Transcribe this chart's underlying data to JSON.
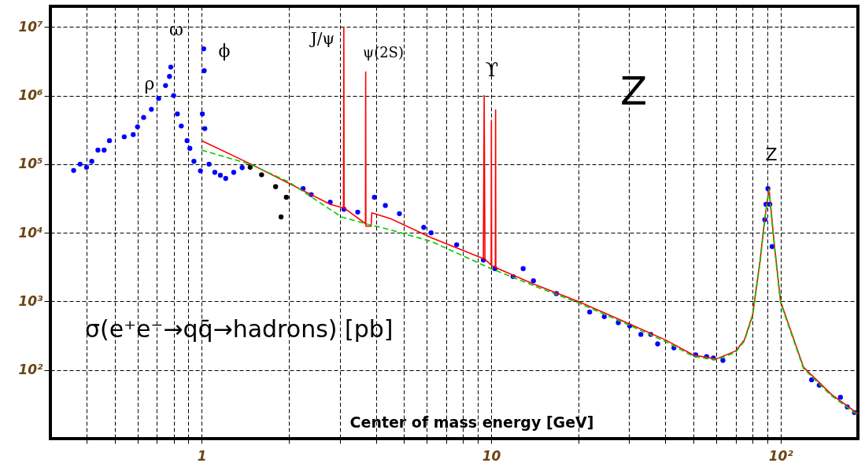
{
  "chart_data": {
    "type": "scatter",
    "xlabel": "Center of mass energy [GeV]",
    "xlim": [
      0.3,
      185
    ],
    "ylim": [
      10,
      20000000
    ],
    "log": "xy",
    "grid": true,
    "xticks": [
      {
        "value": 0.4,
        "label": null
      },
      {
        "value": 0.5,
        "label": null
      },
      {
        "value": 0.6,
        "label": null
      },
      {
        "value": 0.7,
        "label": null
      },
      {
        "value": 0.8,
        "label": null
      },
      {
        "value": 0.9,
        "label": null
      },
      1,
      {
        "value": 2,
        "label": null
      },
      {
        "value": 3,
        "label": null
      },
      {
        "value": 4,
        "label": null
      },
      {
        "value": 5,
        "label": null
      },
      {
        "value": 6,
        "label": null
      },
      {
        "value": 7,
        "label": null
      },
      {
        "value": 8,
        "label": null
      },
      {
        "value": 9,
        "label": null
      },
      10,
      {
        "value": 20,
        "label": null
      },
      {
        "value": 30,
        "label": null
      },
      {
        "value": 40,
        "label": null
      },
      {
        "value": 50,
        "label": null
      },
      {
        "value": 60,
        "label": null
      },
      {
        "value": 70,
        "label": null
      },
      {
        "value": 80,
        "label": null
      },
      {
        "value": 90,
        "label": null
      },
      {
        "value": 100,
        "label": "10²"
      }
    ],
    "yticks": [
      {
        "value": 100,
        "label": "10²"
      },
      {
        "value": 1000,
        "label": "10³"
      },
      {
        "value": 10000,
        "label": "10⁴"
      },
      {
        "value": 100000,
        "label": "10⁵"
      },
      {
        "value": 1000000,
        "label": "10⁶"
      },
      {
        "value": 10000000,
        "label": "10⁷"
      }
    ],
    "annotations": [
      "ρ",
      "ω",
      "ϕ",
      "J/ψ",
      "ψ(2S)",
      "ϒ",
      "Z",
      "Z",
      "σ(e⁺e⁻→qq̄→hadrons) [pb]"
    ],
    "series": [
      {
        "color": "#0000ff",
        "marker": "circle",
        "x": [
          0.361,
          0.38,
          0.4,
          0.417,
          0.438,
          0.46,
          0.48,
          0.54,
          0.58,
          0.6,
          0.63,
          0.67,
          0.71,
          0.75,
          0.774,
          0.782,
          0.8,
          0.824,
          0.85,
          0.89,
          0.91,
          0.94,
          0.99,
          1.005,
          1.016,
          1.02,
          1.025,
          1.06,
          1.11,
          1.16,
          1.21,
          1.29,
          1.38,
          2.24,
          2.39,
          2.78,
          3.1,
          3.46,
          3.95,
          4.31,
          4.82,
          5.85,
          6.2,
          7.6,
          9.4,
          10.3,
          11.9,
          12.9,
          14,
          16.8,
          21.9,
          24.6,
          27.5,
          30.1,
          32.9,
          35.6,
          37.6,
          42.8,
          50.9,
          55.5,
          58.6,
          63.2,
          88.2,
          89,
          90.4,
          91.8,
          93.5,
          128,
          136,
          161,
          170,
          180
        ],
        "values": [
          81000,
          100000,
          90000,
          110000,
          160000,
          160000,
          220000,
          250000,
          270000,
          350000,
          480000,
          630000,
          910000,
          1400000,
          1900000,
          2600000,
          1000000,
          540000,
          360000,
          220000,
          170000,
          110000,
          80000,
          540000,
          4800000,
          2300000,
          330000,
          100000,
          76000,
          69000,
          62000,
          76000,
          89000,
          44000,
          36000,
          28000,
          22000,
          20000,
          33000,
          25000,
          19000,
          12000,
          10000,
          6700,
          4000,
          3000,
          2300,
          3000,
          2000,
          1300,
          700,
          600,
          490,
          440,
          330,
          330,
          240,
          210,
          166,
          157,
          150,
          138,
          15500,
          26000,
          44000,
          26000,
          6300,
          72,
          60,
          40,
          29,
          24
        ]
      },
      {
        "color": "#000000",
        "marker": "circle",
        "x": [
          1.47,
          1.61,
          1.8,
          1.88,
          1.96
        ],
        "values": [
          90000,
          70000,
          47000,
          17000,
          33000
        ]
      },
      {
        "type": "line",
        "color": "#00cc00",
        "line_style": "dashed",
        "x": [
          1,
          1.47,
          2,
          3.04,
          3.7,
          4.5,
          6.2,
          10,
          14,
          20,
          30,
          40,
          50,
          60,
          70,
          75,
          80,
          85,
          88,
          91.2,
          95.3,
          100,
          120,
          150,
          185
        ],
        "values": [
          160000,
          100000,
          55000,
          17000,
          13500,
          11000,
          7500,
          3000,
          1700,
          950,
          450,
          260,
          158,
          140,
          182,
          265,
          600,
          3800,
          14500,
          42000,
          6000,
          950,
          105,
          42,
          22
        ]
      },
      {
        "type": "line",
        "color": "#ff0000",
        "line_style": "solid",
        "x": [
          1,
          1.48,
          2.78,
          3.09,
          3.097,
          3.104,
          3.68,
          3.686,
          3.692,
          3.85,
          3.87,
          4.5,
          6.2,
          9.4,
          9.46,
          9.52,
          10.0,
          10.02,
          10.04,
          10.34,
          10.36,
          10.38,
          14,
          20,
          30,
          40,
          50,
          60,
          70,
          75,
          80,
          85,
          88,
          91.2,
          95.3,
          100,
          120,
          150,
          185
        ],
        "values": [
          220000,
          100000,
          26000,
          23000,
          10000000,
          23000,
          13600,
          2200000,
          12500,
          12500,
          19500,
          16000,
          8500,
          4200,
          1000000,
          4100,
          3400,
          430000,
          3300,
          3200,
          620000,
          3100,
          1800,
          1000,
          470,
          275,
          165,
          145,
          190,
          275,
          630,
          4000,
          15000,
          44000,
          6300,
          1000,
          110,
          44,
          23
        ]
      }
    ]
  }
}
